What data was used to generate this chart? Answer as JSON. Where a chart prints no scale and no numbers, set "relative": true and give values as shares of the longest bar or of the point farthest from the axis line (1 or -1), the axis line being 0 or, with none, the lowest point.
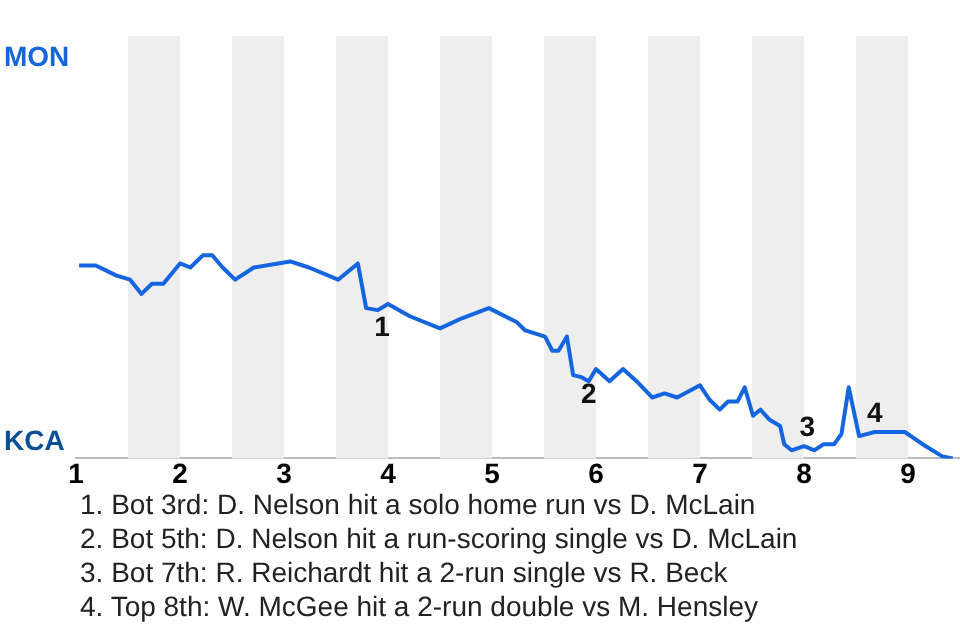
{
  "chart_data": {
    "type": "line",
    "relative": true,
    "marker": "none",
    "line_style": "solid",
    "legend": false,
    "x": [
      1.03,
      1.19,
      1.39,
      1.52,
      1.63,
      1.73,
      1.84,
      2,
      2.1,
      2.22,
      2.31,
      2.41,
      2.53,
      2.71,
      3.06,
      3.24,
      3.52,
      3.71,
      3.79,
      3.9,
      4,
      4.21,
      4.5,
      4.71,
      4.97,
      5.24,
      5.32,
      5.51,
      5.58,
      5.64,
      5.72,
      5.78,
      5.86,
      5.93,
      6,
      6.13,
      6.26,
      6.39,
      6.54,
      6.66,
      6.78,
      7,
      7.09,
      7.19,
      7.27,
      7.36,
      7.43,
      7.51,
      7.58,
      7.67,
      7.77,
      7.81,
      7.88,
      8,
      8.1,
      8.19,
      8.29,
      8.36,
      8.43,
      8.53,
      8.68,
      8.97,
      9.14,
      9.33,
      9.43
    ],
    "series": [
      {
        "color": "#1565e0",
        "values": [
          0.95,
          0.95,
          0.9,
          0.88,
          0.81,
          0.86,
          0.86,
          0.96,
          0.94,
          1,
          1,
          0.94,
          0.88,
          0.94,
          0.97,
          0.94,
          0.88,
          0.96,
          0.74,
          0.73,
          0.76,
          0.7,
          0.64,
          0.69,
          0.74,
          0.67,
          0.63,
          0.6,
          0.53,
          0.53,
          0.6,
          0.41,
          0.4,
          0.38,
          0.44,
          0.38,
          0.44,
          0.38,
          0.3,
          0.32,
          0.3,
          0.36,
          0.29,
          0.24,
          0.28,
          0.28,
          0.35,
          0.21,
          0.24,
          0.19,
          0.16,
          0.07,
          0.04,
          0.06,
          0.04,
          0.07,
          0.07,
          0.12,
          0.35,
          0.11,
          0.13,
          0.13,
          0.07,
          0.01,
          0
        ]
      }
    ],
    "xlim": [
      1,
      9.5
    ],
    "xticks": [
      1,
      2,
      3,
      4,
      5,
      6,
      7,
      8,
      9
    ],
    "bands": [
      {
        "axis": "x",
        "from": 1.5,
        "to": 2,
        "color": "#eeeeee"
      },
      {
        "axis": "x",
        "from": 2.5,
        "to": 3,
        "color": "#eeeeee"
      },
      {
        "axis": "x",
        "from": 3.5,
        "to": 4,
        "color": "#eeeeee"
      },
      {
        "axis": "x",
        "from": 4.5,
        "to": 5,
        "color": "#eeeeee"
      },
      {
        "axis": "x",
        "from": 5.5,
        "to": 6,
        "color": "#eeeeee"
      },
      {
        "axis": "x",
        "from": 6.5,
        "to": 7,
        "color": "#eeeeee"
      },
      {
        "axis": "x",
        "from": 7.5,
        "to": 8,
        "color": "#eeeeee"
      },
      {
        "axis": "x",
        "from": 8.5,
        "to": 9,
        "color": "#eeeeee"
      }
    ],
    "annotations": [
      {
        "text": "1",
        "x": 3.79,
        "y": 0.74
      },
      {
        "text": "2",
        "x": 5.78,
        "y": 0.41
      },
      {
        "text": "3",
        "x": 7.88,
        "y": 0.04
      },
      {
        "text": "4",
        "x": 8.53,
        "y": 0.11
      },
      "MON",
      "KCA",
      "1. Bot 3rd: D. Nelson hit a solo home run vs D. McLain",
      "2. Bot 5th: D. Nelson hit a run-scoring single vs D. McLain",
      "3. Bot 7th: R. Reichardt hit a 2-run single vs R. Beck",
      "4. Top 8th: W. McGee hit a 2-run double vs M. Hensley"
    ]
  }
}
